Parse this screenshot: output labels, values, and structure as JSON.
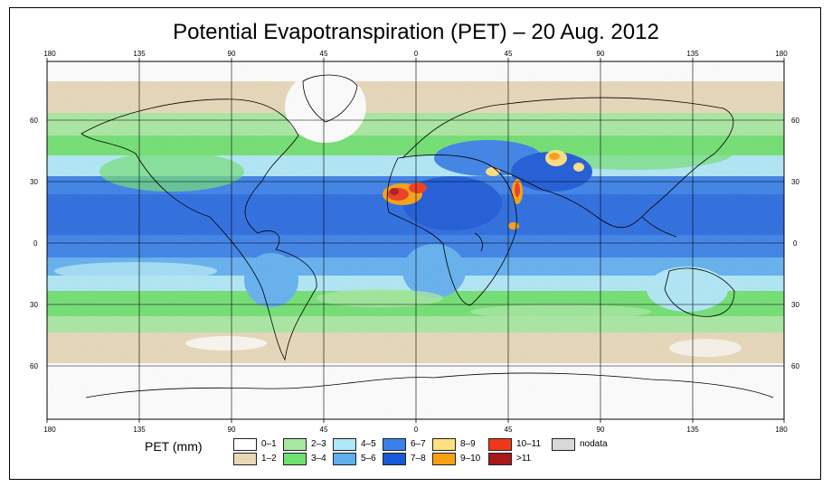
{
  "title": "Potential Evapotranspiration (PET) – 20 Aug. 2012",
  "x_ticks": [
    "180",
    "135",
    "90",
    "45",
    "0",
    "45",
    "90",
    "135",
    "180"
  ],
  "y_ticks": [
    "60",
    "30",
    "0",
    "30",
    "60"
  ],
  "legend": {
    "title": "PET (mm)",
    "items": [
      {
        "label": "0–1",
        "color": "#ffffff"
      },
      {
        "label": "1–2",
        "color": "#e8d8b8"
      },
      {
        "label": "2–3",
        "color": "#a8e8a0"
      },
      {
        "label": "3–4",
        "color": "#70e070"
      },
      {
        "label": "4–5",
        "color": "#b0e8f8"
      },
      {
        "label": "5–6",
        "color": "#60b0f0"
      },
      {
        "label": "6–7",
        "color": "#3a80e8"
      },
      {
        "label": "7–8",
        "color": "#1a58d8"
      },
      {
        "label": "8–9",
        "color": "#fde080"
      },
      {
        "label": "9–10",
        "color": "#f8a010"
      },
      {
        "label": "10–11",
        "color": "#f03818"
      },
      {
        "label": ">11",
        "color": "#a81818"
      },
      {
        "label": "nodata",
        "color": "#d8d8d8"
      }
    ]
  },
  "map_data": {
    "extent": {
      "lon": [
        -180,
        180
      ],
      "lat": [
        -90,
        90
      ]
    },
    "grid_lon": [
      -180,
      -135,
      -90,
      -45,
      0,
      45,
      90,
      135,
      180
    ],
    "grid_lat": [
      -60,
      -30,
      0,
      30,
      60
    ]
  }
}
